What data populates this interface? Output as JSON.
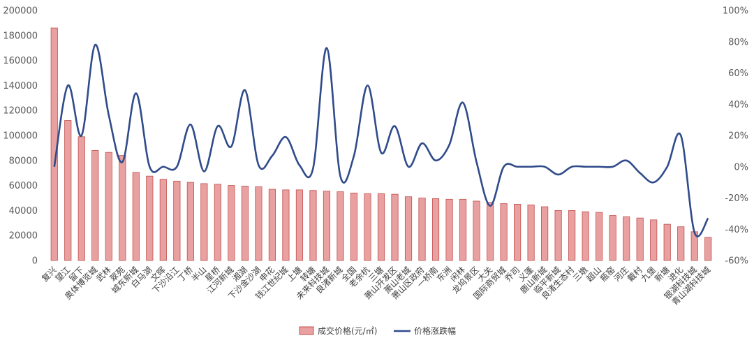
{
  "chart_data": {
    "type": "bar",
    "categories": [
      "复兴",
      "望江",
      "留下",
      "奥体博览城",
      "武林",
      "翠苑",
      "城东新城",
      "白马湖",
      "文晖",
      "下沙沿江",
      "丁桥",
      "半山",
      "星桥",
      "江河新城",
      "湘湖",
      "下沙金沙湖",
      "申花",
      "钱江世纪城",
      "上塘",
      "转塘",
      "未来科技城",
      "良渚新城",
      "全国",
      "老余杭",
      "三塘",
      "萧山开发区",
      "萧山老城",
      "萧山区政府",
      "一桥南",
      "东洲",
      "闲林",
      "龙坞景区",
      "大关",
      "国际商贸城",
      "乔司",
      "义蓬",
      "鹿山新城",
      "临平新城",
      "良渚生态村",
      "三墩",
      "超山",
      "瓶窑",
      "河庄",
      "戴村",
      "九堡",
      "新塘",
      "进化",
      "银湖科技城",
      "青山湖科技城"
    ],
    "series": [
      {
        "name": "成交价格(元/㎡)",
        "type": "bar",
        "axis": "left",
        "color": "#e8a0a0",
        "edge_color": "#c0504d",
        "values": [
          186000,
          112000,
          99000,
          88000,
          86500,
          84000,
          70500,
          67500,
          65000,
          63500,
          62500,
          61500,
          61000,
          60000,
          59500,
          59000,
          57000,
          56500,
          56500,
          56000,
          55500,
          55000,
          54000,
          53500,
          53500,
          53000,
          51000,
          50000,
          49500,
          49000,
          49000,
          47500,
          46500,
          45500,
          45000,
          44500,
          43000,
          40000,
          40000,
          39000,
          38500,
          36000,
          35000,
          34000,
          32500,
          29000,
          27000,
          23000,
          18500
        ]
      },
      {
        "name": "价格涨跌幅",
        "type": "line",
        "axis": "right",
        "color": "#2f4b8a",
        "values": [
          0,
          52,
          20,
          78,
          33,
          3,
          47,
          0,
          0,
          0,
          27,
          -3,
          26,
          13,
          49,
          1,
          7,
          19,
          1,
          -1,
          76,
          -6,
          7,
          52,
          9,
          26,
          0,
          15,
          4,
          14,
          41,
          3,
          -25,
          0,
          0,
          0,
          0,
          -5,
          0,
          0,
          0,
          0,
          4,
          -4,
          -10,
          0,
          20,
          -42,
          -33
        ]
      }
    ],
    "y_left": {
      "min": 0,
      "max": 200000,
      "step": 20000,
      "ticks": [
        "0",
        "20000",
        "40000",
        "60000",
        "80000",
        "100000",
        "120000",
        "140000",
        "160000",
        "180000",
        "200000"
      ]
    },
    "y_right": {
      "min": -60,
      "max": 100,
      "step": 20,
      "ticks": [
        "-60%",
        "-40%",
        "-20%",
        "0%",
        "20%",
        "40%",
        "60%",
        "80%",
        "100%"
      ]
    },
    "grid": false,
    "legend_position": "bottom",
    "title": "",
    "xlabel": "",
    "ylabel": ""
  }
}
